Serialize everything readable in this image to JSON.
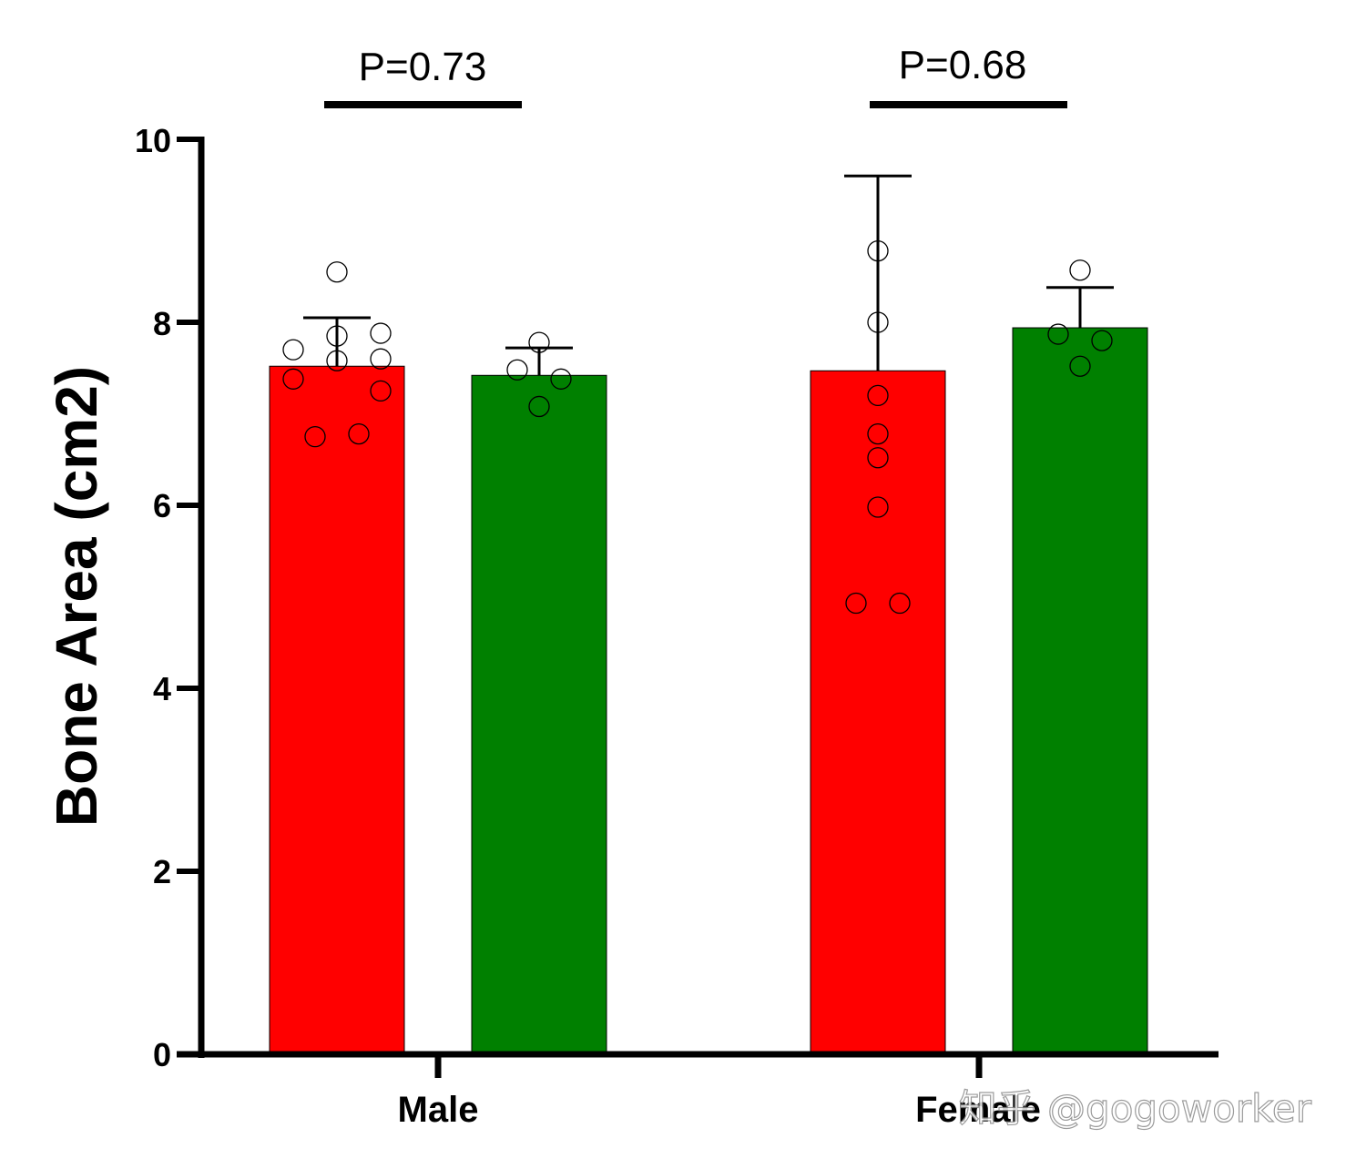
{
  "chart_data": {
    "type": "bar",
    "title": "",
    "xlabel": "",
    "ylabel": "Bone Area (cm2)",
    "ylim": [
      0,
      10
    ],
    "yticks": [
      "0",
      "2",
      "4",
      "6",
      "8",
      "10"
    ],
    "categories": [
      "Male",
      "Female"
    ],
    "colors": {
      "red_group": "#ff0000",
      "green_group": "#008000"
    },
    "series": [
      {
        "name": "red-group",
        "color": "#ff0000",
        "values": [
          7.52,
          7.47
        ],
        "error_upper": [
          8.05,
          9.6
        ],
        "points": [
          [
            8.55,
            7.85,
            7.58,
            7.7,
            7.88,
            7.6,
            7.38,
            7.25,
            6.75,
            6.78
          ],
          [
            8.78,
            8.0,
            7.2,
            6.78,
            6.52,
            5.98,
            4.93,
            4.93
          ]
        ]
      },
      {
        "name": "green-group",
        "color": "#008000",
        "values": [
          7.42,
          7.94
        ],
        "error_upper": [
          7.72,
          8.38
        ],
        "points": [
          [
            7.78,
            7.48,
            7.38,
            7.08
          ],
          [
            8.57,
            7.87,
            7.8,
            7.52
          ]
        ]
      }
    ],
    "comparisons": [
      {
        "group": "Male",
        "label": "P=0.73"
      },
      {
        "group": "Female",
        "label": "P=0.68"
      }
    ]
  },
  "watermark": "知乎 @gogoworker"
}
